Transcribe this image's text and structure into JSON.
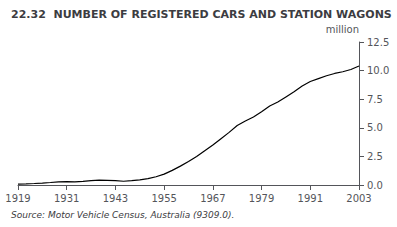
{
  "chart_data": {
    "type": "line",
    "title": "22.32  NUMBER OF REGISTERED CARS AND STATION WAGONS",
    "ylabel": "million",
    "source": "Source: Motor Vehicle Census, Australia (9309.0).",
    "color": "#000000",
    "x": [
      1919,
      1921,
      1923,
      1925,
      1927,
      1929,
      1931,
      1933,
      1935,
      1937,
      1939,
      1941,
      1943,
      1945,
      1947,
      1949,
      1951,
      1953,
      1955,
      1957,
      1959,
      1961,
      1963,
      1965,
      1967,
      1969,
      1971,
      1973,
      1975,
      1977,
      1979,
      1981,
      1983,
      1985,
      1987,
      1989,
      1991,
      1993,
      1995,
      1997,
      1999,
      2001,
      2003
    ],
    "values": [
      0.08,
      0.1,
      0.13,
      0.17,
      0.22,
      0.28,
      0.3,
      0.28,
      0.32,
      0.38,
      0.42,
      0.4,
      0.38,
      0.33,
      0.38,
      0.45,
      0.55,
      0.72,
      0.95,
      1.28,
      1.65,
      2.05,
      2.5,
      3.0,
      3.5,
      4.05,
      4.6,
      5.2,
      5.6,
      5.95,
      6.4,
      6.9,
      7.25,
      7.7,
      8.15,
      8.65,
      9.05,
      9.3,
      9.55,
      9.75,
      9.9,
      10.1,
      10.4
    ],
    "xlim": [
      1919,
      2003
    ],
    "xticks": [
      1919,
      1931,
      1943,
      1955,
      1967,
      1979,
      1991,
      2003
    ],
    "ylim": [
      0,
      12.5
    ],
    "yticks": [
      {
        "value": 0,
        "label": "0.0"
      },
      2.5,
      {
        "value": 5,
        "label": "5.0"
      },
      7.5,
      {
        "value": 10,
        "label": "10.0"
      },
      12.5
    ],
    "grid": false
  }
}
